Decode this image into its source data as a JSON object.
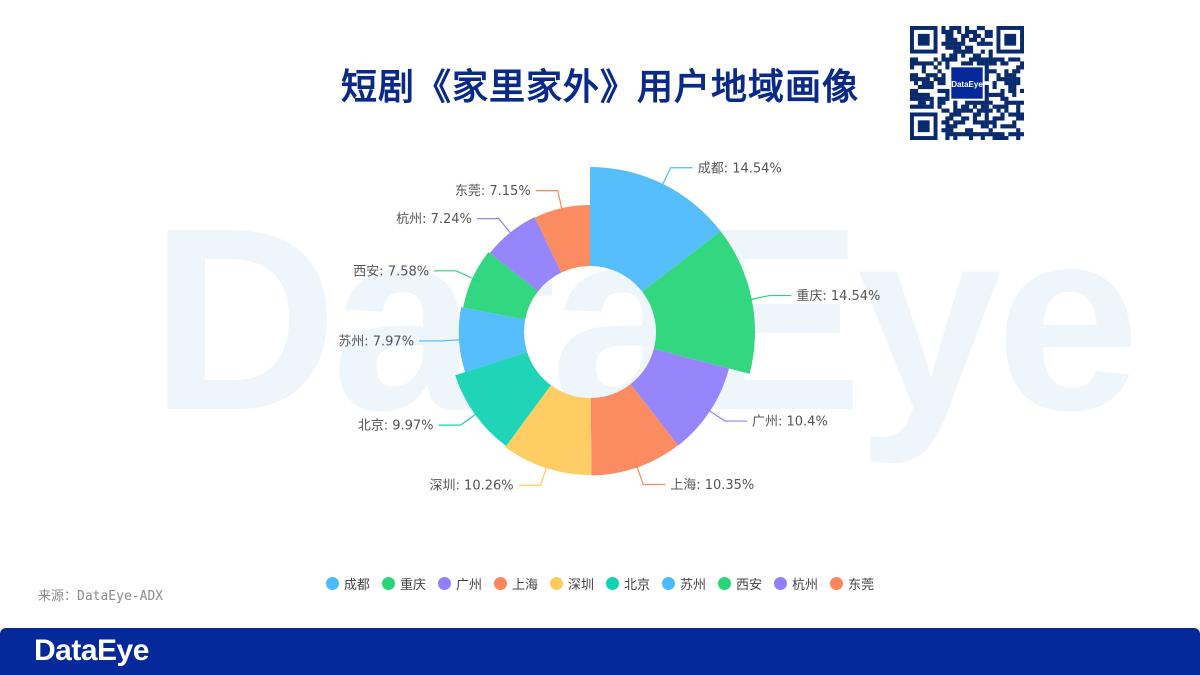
{
  "header": {
    "title": "短剧《家里家外》用户地域画像",
    "qr_logo_text": "DataEye"
  },
  "watermark": "DataEye",
  "chart_data": {
    "type": "pie",
    "variant": "rose-donut",
    "title": "短剧《家里家外》用户地域画像",
    "series": [
      {
        "name": "成都",
        "value": 14.54,
        "label": "成都: 14.54%",
        "color": "#4dbcfb"
      },
      {
        "name": "重庆",
        "value": 14.54,
        "label": "重庆: 14.54%",
        "color": "#27d578"
      },
      {
        "name": "广州",
        "value": 10.4,
        "label": "广州: 10.4%",
        "color": "#9180fb"
      },
      {
        "name": "上海",
        "value": 10.35,
        "label": "上海: 10.35%",
        "color": "#fb865a"
      },
      {
        "name": "深圳",
        "value": 10.26,
        "label": "深圳: 10.26%",
        "color": "#fecb5c"
      },
      {
        "name": "北京",
        "value": 9.97,
        "label": "北京: 9.97%",
        "color": "#14d2b4"
      },
      {
        "name": "苏州",
        "value": 7.97,
        "label": "苏州: 7.97%",
        "color": "#4dbcfb"
      },
      {
        "name": "西安",
        "value": 7.58,
        "label": "西安: 7.58%",
        "color": "#27d578"
      },
      {
        "name": "杭州",
        "value": 7.24,
        "label": "杭州: 7.24%",
        "color": "#9180fb"
      },
      {
        "name": "东莞",
        "value": 7.15,
        "label": "东莞: 7.15%",
        "color": "#fb865a"
      }
    ],
    "legend_position": "bottom"
  },
  "source": "来源：DataEye-ADX",
  "footer": {
    "logo": "DataEye"
  },
  "icons": [
    "qr-code-icon"
  ]
}
